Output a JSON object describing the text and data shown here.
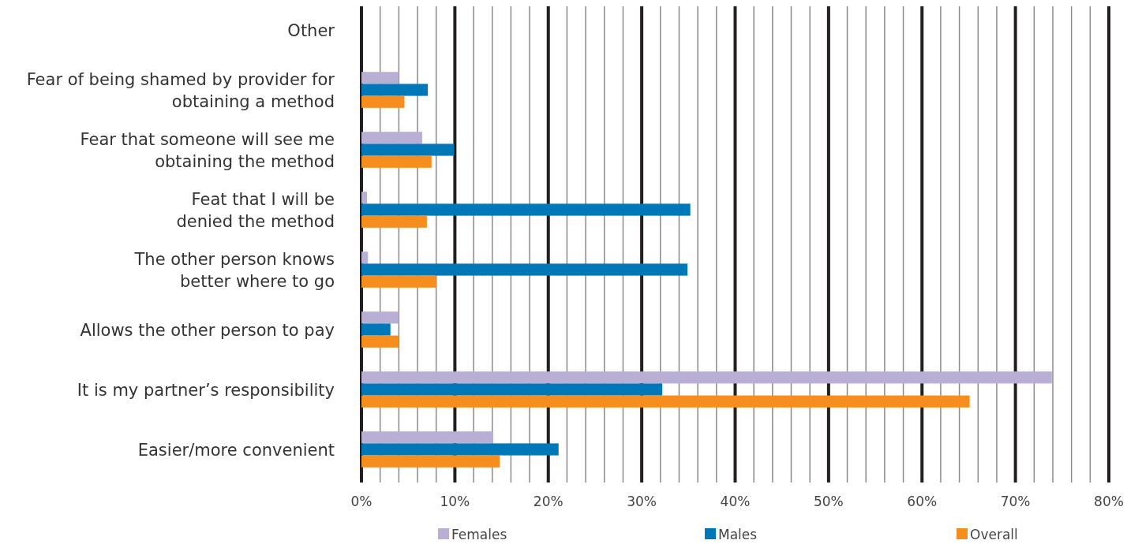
{
  "chart_data": {
    "type": "bar",
    "orientation": "horizontal",
    "categories": [
      "Other",
      "Fear of being shamed by provider for\nobtaining a method",
      "Fear that someone will see me\nobtaining the method",
      "Feat that I will be\ndenied the method",
      "The other person knows\nbetter where to go",
      "Allows the other person to pay",
      "It is my partner’s responsibility",
      "Easier/more convenient"
    ],
    "series": [
      {
        "name": "Females",
        "color": "#b9aed4",
        "values": [
          0,
          4.0,
          6.5,
          0.6,
          0.7,
          4.0,
          73.9,
          14.1
        ]
      },
      {
        "name": "Males",
        "color": "#0077b6",
        "values": [
          0,
          7.1,
          9.9,
          35.2,
          34.9,
          3.1,
          32.2,
          21.1
        ]
      },
      {
        "name": "Overall",
        "color": "#f68d1f",
        "values": [
          0,
          4.6,
          7.5,
          7.0,
          8.0,
          4.0,
          65.1,
          14.8
        ]
      }
    ],
    "xlim": [
      0,
      80
    ],
    "xticks": [
      {
        "value": 0,
        "label": "0%"
      },
      {
        "value": 2,
        "label": null
      },
      {
        "value": 4,
        "label": null
      },
      {
        "value": 6,
        "label": null
      },
      {
        "value": 8,
        "label": null
      },
      {
        "value": 10,
        "label": "10%"
      },
      {
        "value": 12,
        "label": null
      },
      {
        "value": 14,
        "label": null
      },
      {
        "value": 16,
        "label": null
      },
      {
        "value": 18,
        "label": null
      },
      {
        "value": 20,
        "label": "20%"
      },
      {
        "value": 22,
        "label": null
      },
      {
        "value": 24,
        "label": null
      },
      {
        "value": 26,
        "label": null
      },
      {
        "value": 28,
        "label": null
      },
      {
        "value": 30,
        "label": "30%"
      },
      {
        "value": 32,
        "label": null
      },
      {
        "value": 34,
        "label": null
      },
      {
        "value": 36,
        "label": null
      },
      {
        "value": 38,
        "label": null
      },
      {
        "value": 40,
        "label": "40%"
      },
      {
        "value": 42,
        "label": null
      },
      {
        "value": 44,
        "label": null
      },
      {
        "value": 46,
        "label": null
      },
      {
        "value": 48,
        "label": null
      },
      {
        "value": 50,
        "label": "50%"
      },
      {
        "value": 52,
        "label": null
      },
      {
        "value": 54,
        "label": null
      },
      {
        "value": 56,
        "label": null
      },
      {
        "value": 58,
        "label": null
      },
      {
        "value": 60,
        "label": "60%"
      },
      {
        "value": 62,
        "label": null
      },
      {
        "value": 64,
        "label": null
      },
      {
        "value": 66,
        "label": null
      },
      {
        "value": 68,
        "label": null
      },
      {
        "value": 70,
        "label": "70%"
      },
      {
        "value": 72,
        "label": null
      },
      {
        "value": 74,
        "label": null
      },
      {
        "value": 76,
        "label": null
      },
      {
        "value": 78,
        "label": null
      },
      {
        "value": 80,
        "label": "80%"
      }
    ],
    "grid": "x",
    "legend": "bottom"
  }
}
